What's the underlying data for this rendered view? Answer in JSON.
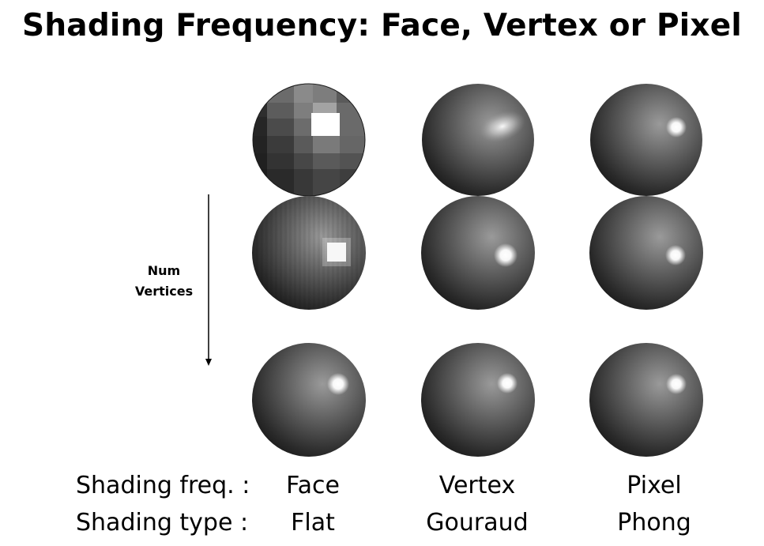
{
  "title": "Shading Frequency: Face, Vertex or Pixel",
  "axis": {
    "label_line1": "Num",
    "label_line2": "Vertices"
  },
  "rows": {
    "freq_label": "Shading freq. :",
    "type_label": "Shading type :"
  },
  "columns": [
    {
      "freq": "Face",
      "type": "Flat"
    },
    {
      "freq": "Vertex",
      "type": "Gouraud"
    },
    {
      "freq": "Pixel",
      "type": "Phong"
    }
  ]
}
